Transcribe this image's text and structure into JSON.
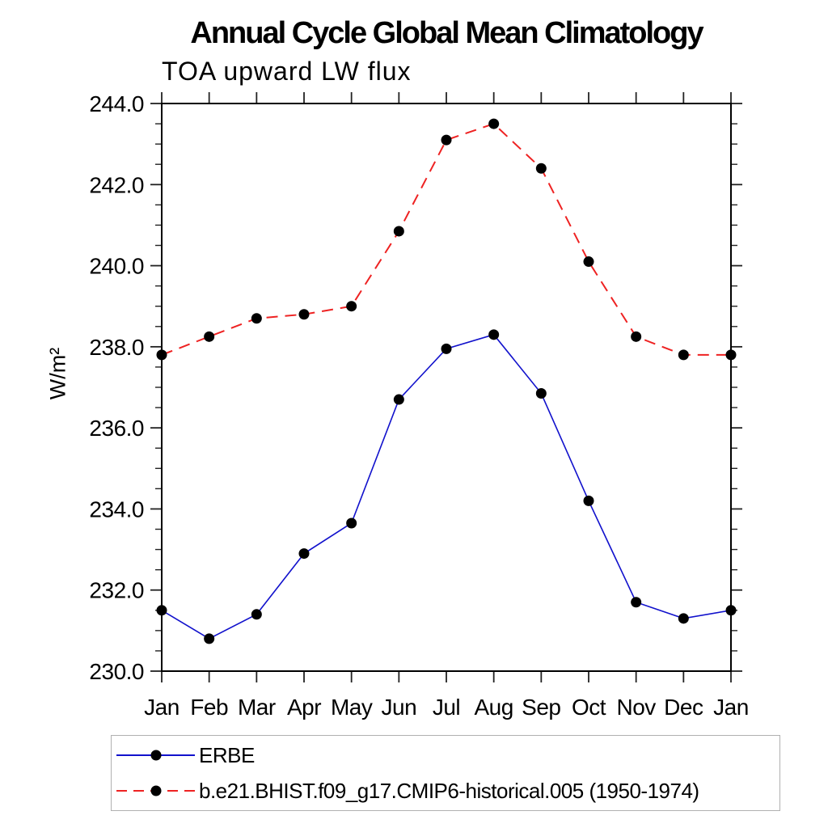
{
  "chart_data": {
    "type": "line",
    "title": "Annual Cycle Global Mean Climatology",
    "subtitle": "TOA upward LW flux",
    "ylabel": "W/m²",
    "categories": [
      "Jan",
      "Feb",
      "Mar",
      "Apr",
      "May",
      "Jun",
      "Jul",
      "Aug",
      "Sep",
      "Oct",
      "Nov",
      "Dec",
      "Jan"
    ],
    "ylim": [
      230.0,
      244.0
    ],
    "ytick_major_interval": 2.0,
    "ytick_minor_interval": 0.5,
    "ytick_label_format_decimals": 1,
    "grid": false,
    "legend_position": "bottom",
    "frame_color": "#000000",
    "tick_color": "#222222",
    "marker_color": "#000000",
    "series": [
      {
        "name": "ERBE",
        "color": "#1111cc",
        "style": "solid",
        "marker": "circle",
        "values": [
          231.5,
          230.8,
          231.4,
          232.9,
          233.65,
          236.7,
          237.95,
          238.3,
          236.85,
          234.2,
          231.7,
          231.3,
          231.5
        ]
      },
      {
        "name": "b.e21.BHIST.f09_g17.CMIP6-historical.005 (1950-1974)",
        "color": "#ee2222",
        "style": "dashed",
        "marker": "circle",
        "values": [
          237.8,
          238.25,
          238.7,
          238.8,
          239.0,
          240.85,
          243.1,
          243.5,
          242.4,
          240.1,
          238.25,
          237.8,
          237.8
        ]
      }
    ]
  }
}
